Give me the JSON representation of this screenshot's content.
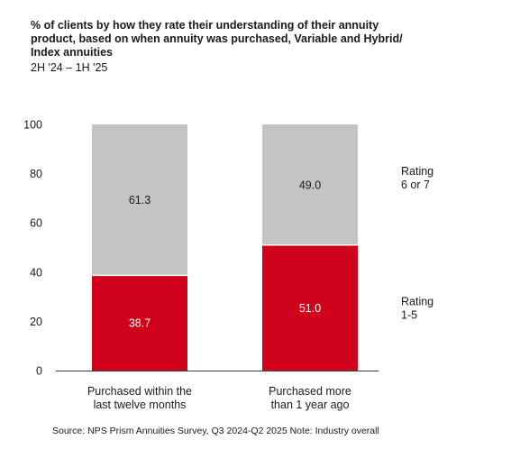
{
  "header": {
    "title_lines": [
      "% of clients by how they rate their understanding of their annuity",
      "product, based on when annuity was purchased, Variable and Hybrid/",
      "Index annuities"
    ],
    "subtitle": "2H '24 – 1H '25"
  },
  "colors": {
    "rating_1_5": "#d0021b",
    "rating_6_7": "#c4c4c4",
    "axis": "#3a3a3a"
  },
  "chart_data": {
    "type": "bar",
    "stacked": true,
    "categories": [
      [
        "Purchased within the",
        "last twelve months"
      ],
      [
        "Purchased more",
        "than 1 year ago"
      ]
    ],
    "series": [
      {
        "name": [
          "Rating",
          "1-5"
        ],
        "values": [
          38.7,
          51.0
        ],
        "labels": [
          "38.7",
          "51.0"
        ]
      },
      {
        "name": [
          "Rating",
          "6 or 7"
        ],
        "values": [
          61.3,
          49.0
        ],
        "labels": [
          "61.3",
          "49.0"
        ]
      }
    ],
    "ylim": [
      0,
      100
    ],
    "yticks": [
      "0",
      "20",
      "40",
      "60",
      "80",
      "100"
    ],
    "grid": false,
    "legend": "right"
  },
  "footer": {
    "source": "Source: NPS Prism Annuities Survey, Q3 2024-Q2 2025 Note: Industry overall"
  }
}
